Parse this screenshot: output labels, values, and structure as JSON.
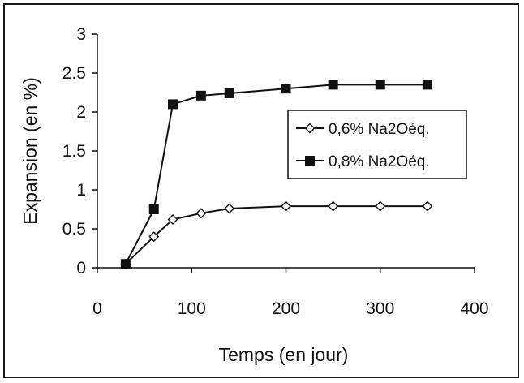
{
  "chart_data": {
    "type": "line",
    "title": "",
    "xlabel": "Temps (en jour)",
    "ylabel": "Expansion (en %)",
    "xlim": [
      0,
      400
    ],
    "ylim": [
      0,
      3
    ],
    "xticks": [
      0,
      100,
      200,
      300,
      400
    ],
    "yticks": [
      0,
      0.5,
      1,
      1.5,
      2,
      2.5,
      3
    ],
    "ytick_labels": [
      "0",
      "0.5",
      "1",
      "1.5",
      "2",
      "2.5",
      "3"
    ],
    "grid": false,
    "legend_position": "right",
    "series": [
      {
        "name": "0,6% Na2Oéq.",
        "marker": "diamond-open",
        "color": "#111111",
        "x": [
          30,
          60,
          80,
          110,
          140,
          200,
          250,
          300,
          350
        ],
        "y": [
          0.05,
          0.4,
          0.62,
          0.7,
          0.76,
          0.79,
          0.79,
          0.79,
          0.79
        ]
      },
      {
        "name": "0,8% Na2Oéq.",
        "marker": "square-filled",
        "color": "#111111",
        "x": [
          30,
          60,
          80,
          110,
          140,
          200,
          250,
          300,
          350
        ],
        "y": [
          0.05,
          0.75,
          2.1,
          2.21,
          2.24,
          2.3,
          2.35,
          2.35,
          2.35
        ]
      }
    ]
  }
}
